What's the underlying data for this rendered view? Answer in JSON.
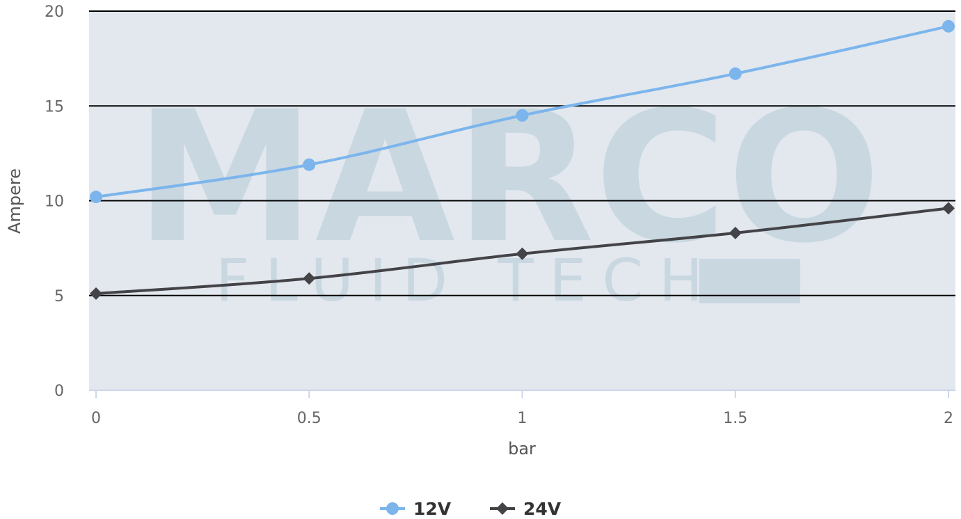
{
  "chart_data": {
    "type": "line",
    "title": "",
    "xlabel": "bar",
    "ylabel": "Ampere",
    "x": [
      0,
      0.5,
      1,
      1.5,
      2
    ],
    "x_tick_labels": [
      "0",
      "0.5",
      "1",
      "1.5",
      "2"
    ],
    "xlim": [
      0,
      2
    ],
    "ylim": [
      0,
      20
    ],
    "y_ticks": [
      0,
      5,
      10,
      15,
      20
    ],
    "grid": true,
    "legend_position": "bottom-center",
    "series": [
      {
        "name": "12V",
        "values": [
          10.2,
          11.9,
          14.5,
          16.7,
          19.2
        ],
        "color": "#7cb5ec",
        "marker": "circle"
      },
      {
        "name": "24V",
        "values": [
          5.1,
          5.9,
          7.2,
          8.3,
          9.6
        ],
        "color": "#434348",
        "marker": "diamond"
      }
    ],
    "watermark": {
      "line1": "MARCO",
      "line2": "FLUID TECH",
      "mark": "®"
    }
  }
}
